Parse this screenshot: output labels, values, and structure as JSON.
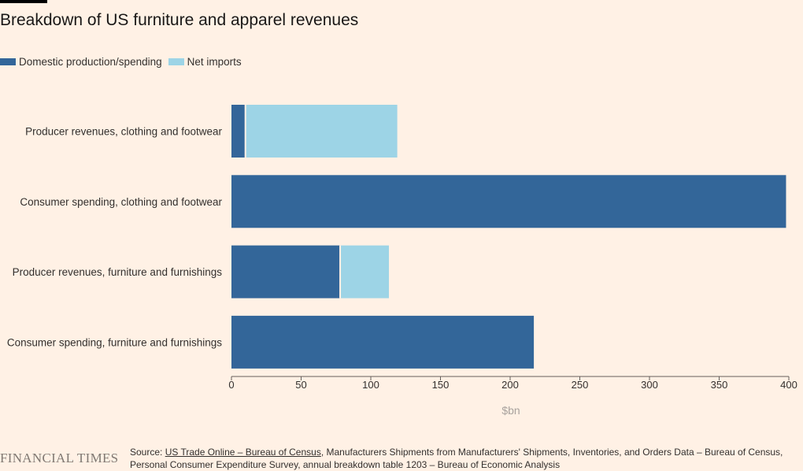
{
  "header": {
    "title": "Breakdown of US furniture and apparel revenues"
  },
  "legend": {
    "items": [
      {
        "label": "Domestic production/spending",
        "color": "#336699"
      },
      {
        "label": "Net imports",
        "color": "#9dd4e6"
      }
    ]
  },
  "chart_data": {
    "type": "bar",
    "orientation": "horizontal",
    "stacked": true,
    "title": "Breakdown of US furniture and apparel revenues",
    "categories": [
      "Producer revenues, clothing and footwear",
      "Consumer spending, clothing and footwear",
      "Producer revenues, furniture and furnishings",
      "Consumer spending, furniture and furnishings"
    ],
    "series": [
      {
        "name": "Domestic production/spending",
        "color": "#336699",
        "values": [
          10,
          398,
          78,
          217
        ]
      },
      {
        "name": "Net imports",
        "color": "#9dd4e6",
        "values": [
          109,
          0,
          35,
          0
        ]
      }
    ],
    "xlabel": "$bn",
    "ylabel": "",
    "xlim": [
      0,
      400
    ],
    "xticks": [
      "0",
      "50",
      "100",
      "150",
      "200",
      "250",
      "300",
      "350",
      "400"
    ],
    "grid": false,
    "legend_position": "top-left"
  },
  "footer": {
    "brand": "FINANCIAL TIMES",
    "source_prefix": "Source: ",
    "source_link": "US Trade Online – Bureau of Census",
    "source_rest": ", Manufacturers Shipments from Manufacturers' Shipments, Inventories, and Orders Data – Bureau of Census, Personal Consumer Expenditure Survey, annual breakdown table 1203 – Bureau of Economic Analysis"
  }
}
